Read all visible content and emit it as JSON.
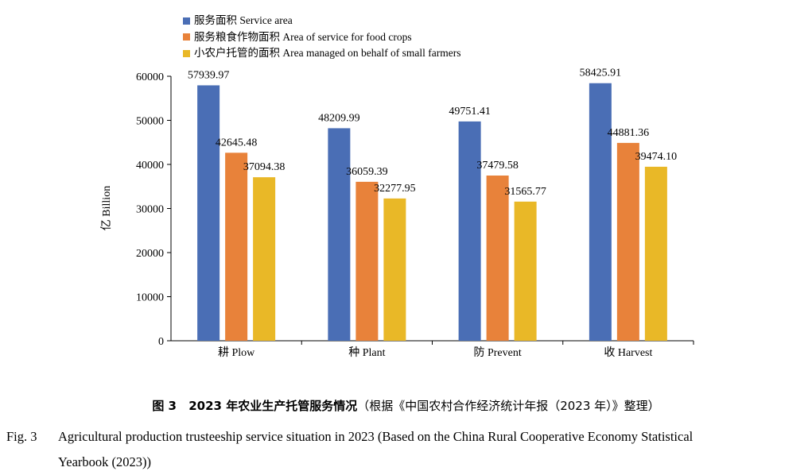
{
  "chart_data": {
    "type": "bar",
    "categories": [
      "耕 Plow",
      "种 Plant",
      "防 Prevent",
      "收 Harvest"
    ],
    "series": [
      {
        "name": "服务面积 Service area",
        "color": "#4a6eb5",
        "values": [
          57939.97,
          48209.99,
          49751.41,
          58425.91
        ],
        "labels": [
          "57939.97",
          "48209.99",
          "49751.41",
          "58425.91"
        ]
      },
      {
        "name": "服务粮食作物面积 Area of service for food crops",
        "color": "#e8823a",
        "values": [
          42645.48,
          36059.39,
          37479.58,
          44881.36
        ],
        "labels": [
          "42645.48",
          "36059.39",
          "37479.58",
          "44881.36"
        ]
      },
      {
        "name": "小农户托管的面积 Area managed on behalf of small farmers",
        "color": "#e9b827",
        "values": [
          37094.38,
          32277.95,
          31565.77,
          39474.1
        ],
        "labels": [
          "37094.38",
          "32277.95",
          "31565.77",
          "39474.10"
        ]
      }
    ],
    "ylabel": "亿 Billion",
    "ylim": [
      0,
      60000
    ],
    "yticks": [
      "0",
      "10000",
      "20000",
      "30000",
      "40000",
      "50000",
      "60000"
    ],
    "legend": "top-left"
  },
  "caption": {
    "cn_number": "图 3",
    "cn_title": "2023 年农业生产托管服务情况",
    "cn_note": "（根据《中国农村合作经济统计年报（2023 年）》整理）",
    "en_number": "Fig. 3",
    "en_line1": "Agricultural production trusteeship service situation in 2023 (Based on the China Rural Cooperative Economy Statistical",
    "en_line2": "Yearbook (2023))"
  }
}
